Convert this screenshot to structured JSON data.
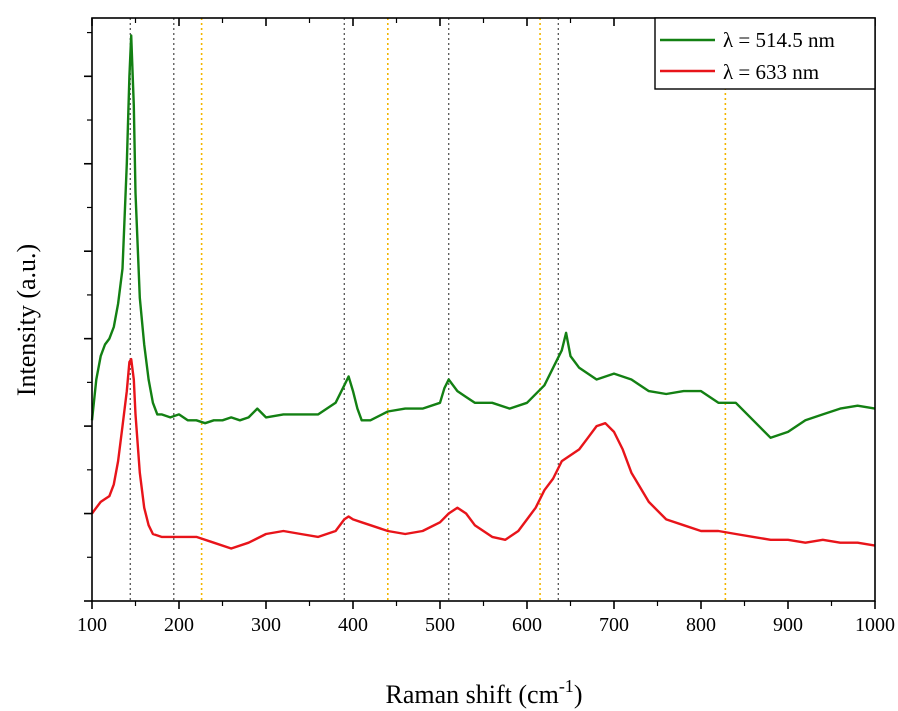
{
  "chart_data": {
    "type": "line",
    "xlabel": "Raman shift (cm",
    "xlabel_sup": "-1",
    "xlabel_tail": ")",
    "ylabel": "Intensity (a.u.)",
    "xlim": [
      100,
      1000
    ],
    "ylim": [
      0,
      100
    ],
    "x_ticks": [
      "100",
      "200",
      "300",
      "400",
      "500",
      "600",
      "700",
      "800",
      "900",
      "1000"
    ],
    "grid": false,
    "legend_position": "top-right",
    "reference_lines": {
      "gray": [
        144,
        194,
        390,
        510,
        636
      ],
      "orange": [
        226,
        440,
        615,
        828
      ],
      "colors": {
        "gray": "#555555",
        "orange": "#f2b600"
      }
    },
    "series": [
      {
        "name": "λ = 514.5 nm",
        "color": "#138013",
        "x": [
          100,
          105,
          110,
          115,
          120,
          125,
          130,
          135,
          140,
          143,
          145,
          148,
          150,
          155,
          160,
          165,
          170,
          175,
          180,
          190,
          200,
          210,
          220,
          230,
          240,
          250,
          260,
          270,
          280,
          290,
          300,
          320,
          340,
          360,
          380,
          390,
          395,
          400,
          405,
          410,
          420,
          440,
          460,
          480,
          500,
          505,
          510,
          520,
          530,
          540,
          560,
          580,
          600,
          620,
          630,
          640,
          645,
          650,
          660,
          680,
          700,
          720,
          740,
          760,
          780,
          800,
          820,
          840,
          860,
          880,
          900,
          920,
          940,
          960,
          980,
          1000
        ],
        "y": [
          31,
          38,
          42,
          44,
          45,
          47,
          51,
          57,
          75,
          90,
          97,
          85,
          70,
          52,
          44,
          38,
          34,
          32,
          32,
          31.5,
          32,
          31,
          31,
          30.5,
          31,
          31,
          31.5,
          31,
          31.5,
          33,
          31.5,
          32,
          32,
          32,
          34,
          37,
          38.5,
          36,
          33,
          31,
          31,
          32.5,
          33,
          33,
          34,
          36.5,
          38,
          36,
          35,
          34,
          34,
          33,
          34,
          37,
          40,
          43,
          46,
          42,
          40,
          38,
          39,
          38,
          36,
          35.5,
          36,
          36,
          34,
          34,
          31,
          28,
          29,
          31,
          32,
          33,
          33.5,
          33
        ]
      },
      {
        "name": "λ = 633 nm",
        "color": "#e8141a",
        "x": [
          100,
          105,
          110,
          115,
          120,
          125,
          130,
          135,
          140,
          143,
          145,
          148,
          150,
          155,
          160,
          165,
          170,
          180,
          200,
          220,
          240,
          260,
          280,
          300,
          320,
          340,
          360,
          380,
          390,
          395,
          400,
          410,
          420,
          440,
          460,
          480,
          500,
          510,
          520,
          530,
          540,
          560,
          575,
          590,
          600,
          610,
          620,
          630,
          640,
          650,
          660,
          670,
          680,
          690,
          700,
          710,
          720,
          740,
          760,
          780,
          800,
          820,
          840,
          860,
          880,
          900,
          920,
          940,
          960,
          980,
          1000
        ],
        "y": [
          15,
          16,
          17,
          17.5,
          18,
          20,
          24,
          30,
          36,
          41,
          41.5,
          38,
          32,
          22,
          16,
          13,
          11.5,
          11,
          11,
          11,
          10,
          9,
          10,
          11.5,
          12,
          11.5,
          11,
          12,
          14,
          14.5,
          14,
          13.5,
          13,
          12,
          11.5,
          12,
          13.5,
          15,
          16,
          15,
          13,
          11,
          10.5,
          12,
          14,
          16,
          19,
          21,
          24,
          25,
          26,
          28,
          30,
          30.5,
          29,
          26,
          22,
          17,
          14,
          13,
          12,
          12,
          11.5,
          11,
          10.5,
          10.5,
          10,
          10.5,
          10,
          10,
          9.5
        ]
      }
    ]
  }
}
